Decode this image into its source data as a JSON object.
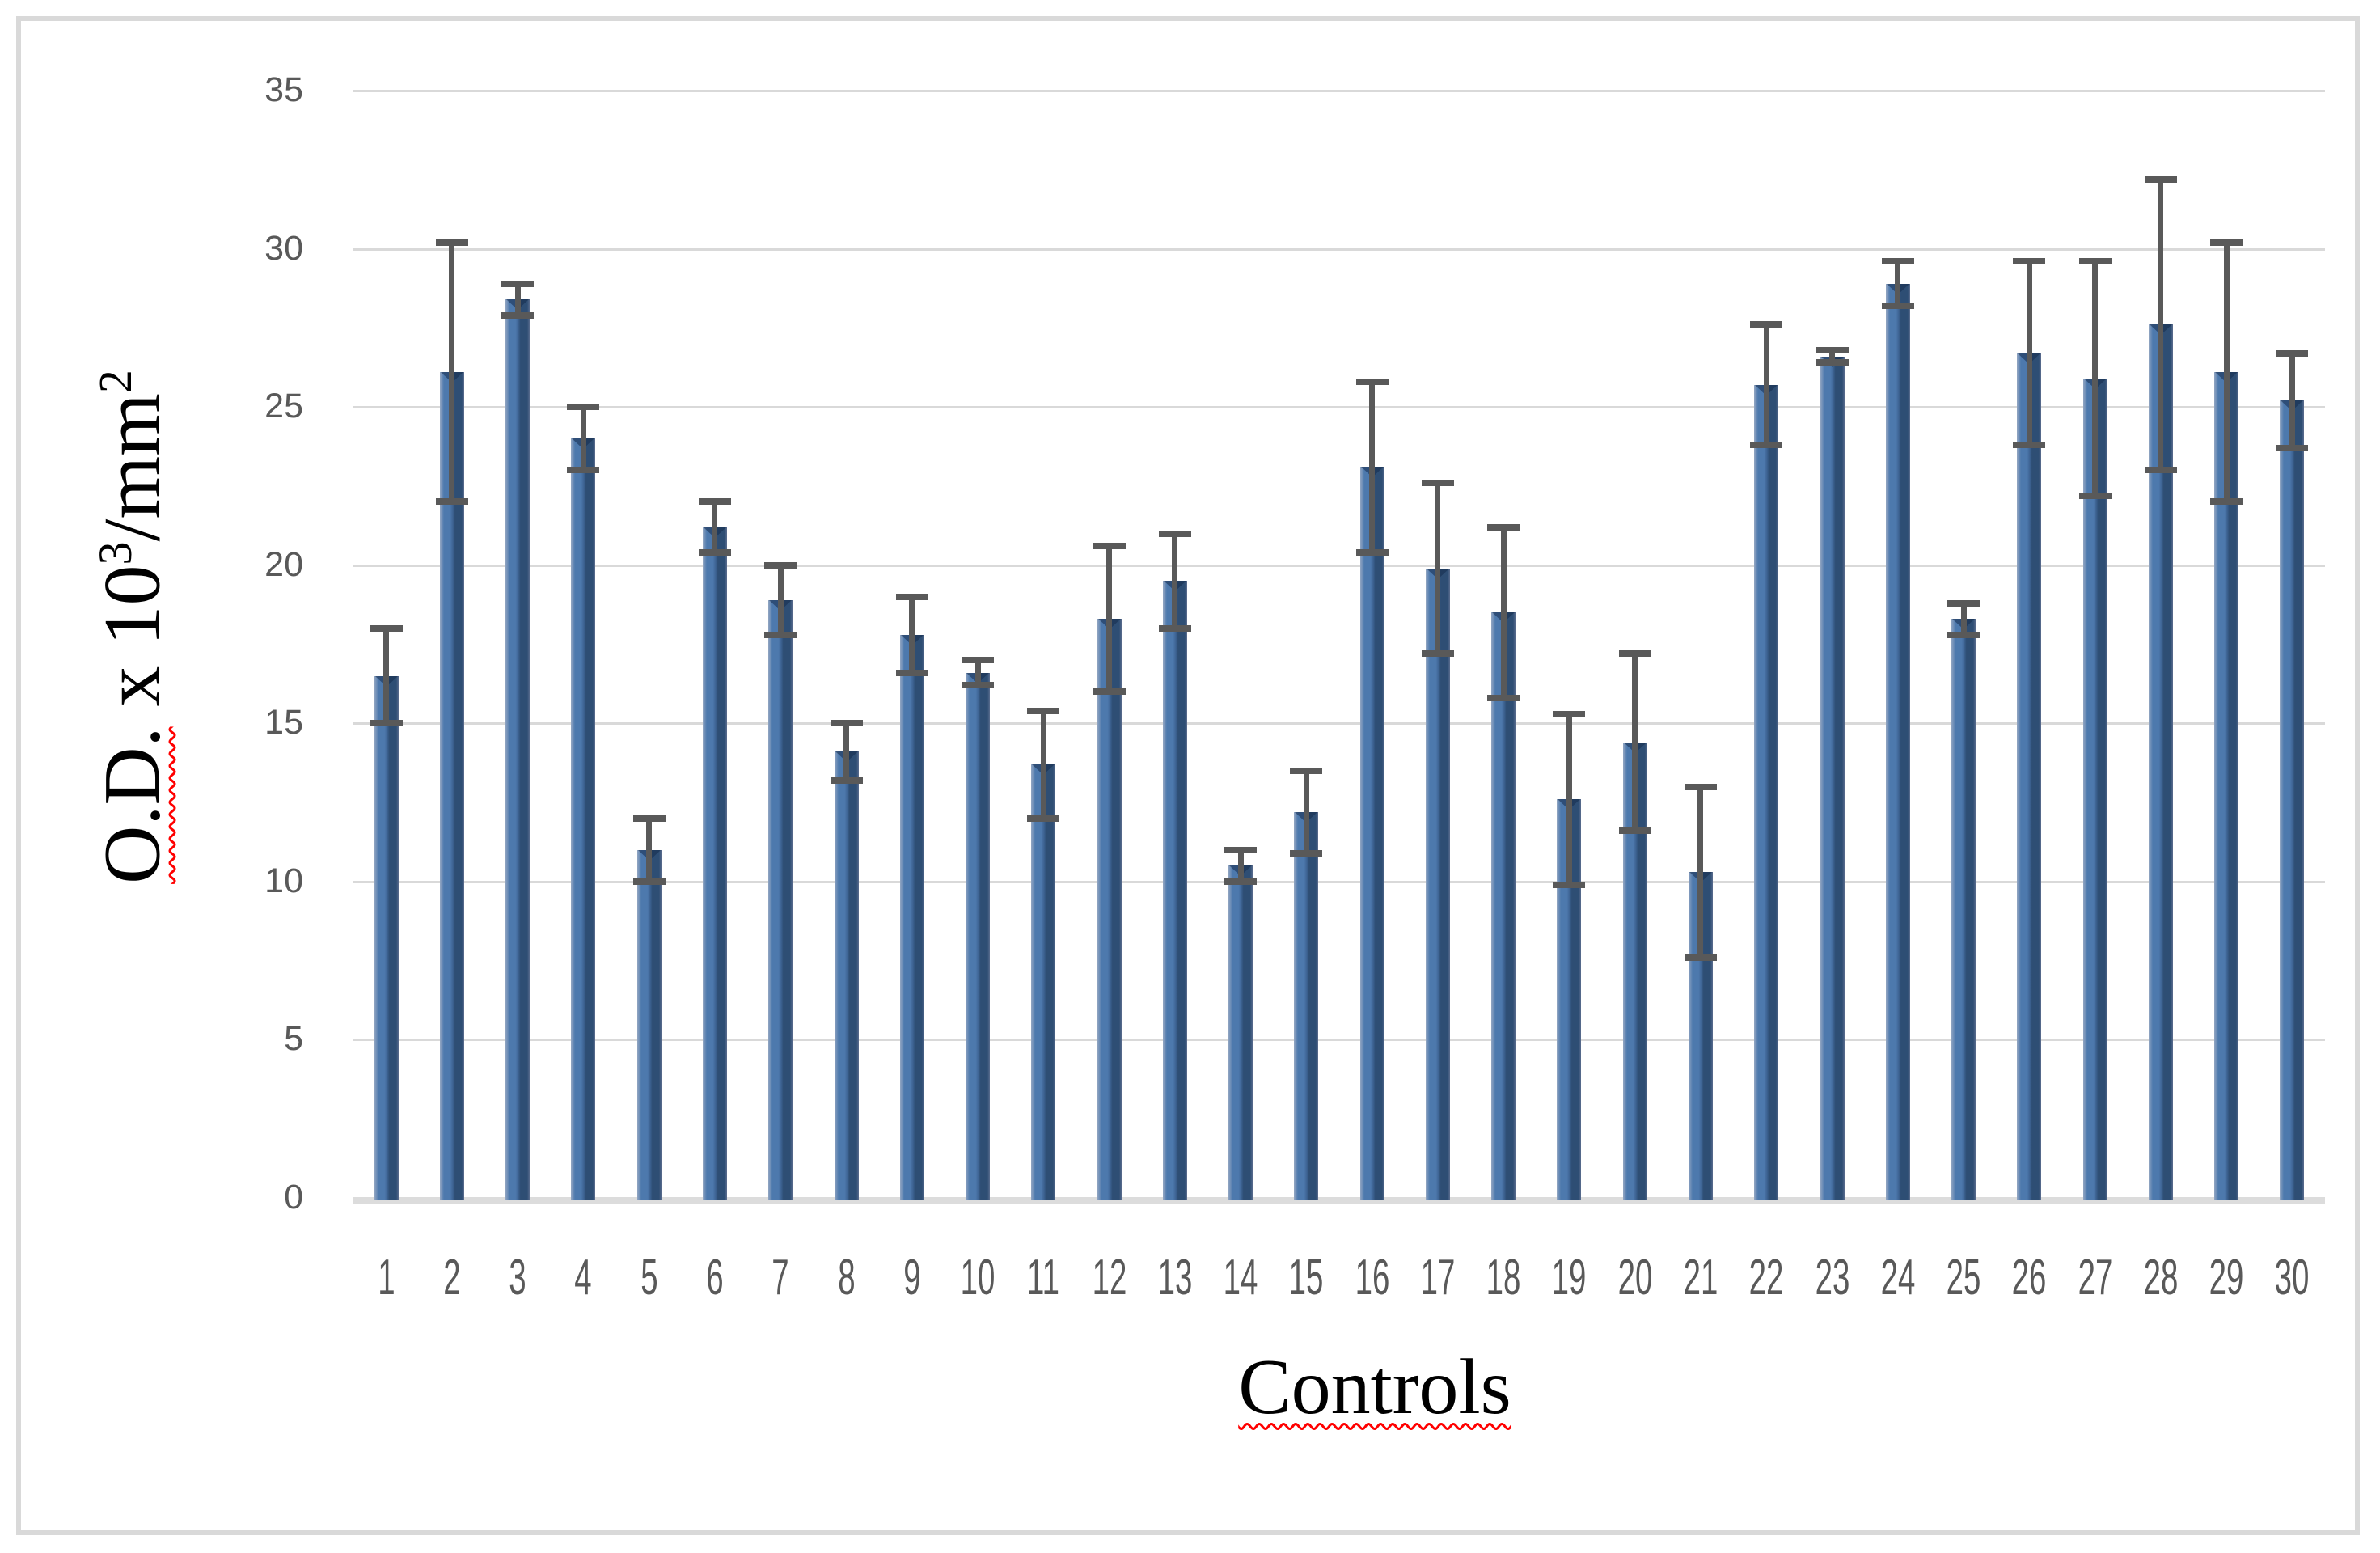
{
  "chart_data": {
    "type": "bar",
    "title": "",
    "xlabel": "Controls",
    "ylabel": "O.D. x 10³/mm²",
    "ylabel_parts": {
      "flagged": "O.D.",
      "pre_sup1": " x 10",
      "sup1": "3",
      "mid": "/mm",
      "sup2": "2"
    },
    "categories": [
      "1",
      "2",
      "3",
      "4",
      "5",
      "6",
      "7",
      "8",
      "9",
      "10",
      "11",
      "12",
      "13",
      "14",
      "15",
      "16",
      "17",
      "18",
      "19",
      "20",
      "21",
      "22",
      "23",
      "24",
      "25",
      "26",
      "27",
      "28",
      "29",
      "30"
    ],
    "values": [
      16.5,
      26.1,
      28.4,
      24.0,
      11.0,
      21.2,
      18.9,
      14.1,
      17.8,
      16.6,
      13.7,
      18.3,
      19.5,
      10.5,
      12.2,
      23.1,
      19.9,
      18.5,
      12.6,
      14.4,
      10.3,
      25.7,
      26.6,
      28.9,
      18.3,
      26.7,
      25.9,
      27.6,
      26.1,
      25.2
    ],
    "errors": [
      1.5,
      4.1,
      0.5,
      1.0,
      1.0,
      0.8,
      1.1,
      0.9,
      1.2,
      0.4,
      1.7,
      2.3,
      1.5,
      0.5,
      1.3,
      2.7,
      2.7,
      2.7,
      2.7,
      2.8,
      2.7,
      1.9,
      0.2,
      0.7,
      0.5,
      2.9,
      3.7,
      4.6,
      4.1,
      1.5
    ],
    "ylim": [
      0,
      35
    ],
    "yticks": [
      "0",
      "5",
      "10",
      "15",
      "20",
      "25",
      "30",
      "35"
    ],
    "grid": "horizontal-major",
    "legend": "none",
    "error_bars": "symmetric, dark gray, capped",
    "colors": {
      "bar_light": "#4d79ad",
      "bar_dark": "#2e4e74",
      "error_bar": "#595959",
      "gridline": "#d9d9d9",
      "tick_label": "#595959",
      "axis_title": "#000000",
      "spellcheck_squiggle": "#ff0000",
      "frame_border": "#d9d9d9",
      "background": "#ffffff"
    }
  }
}
